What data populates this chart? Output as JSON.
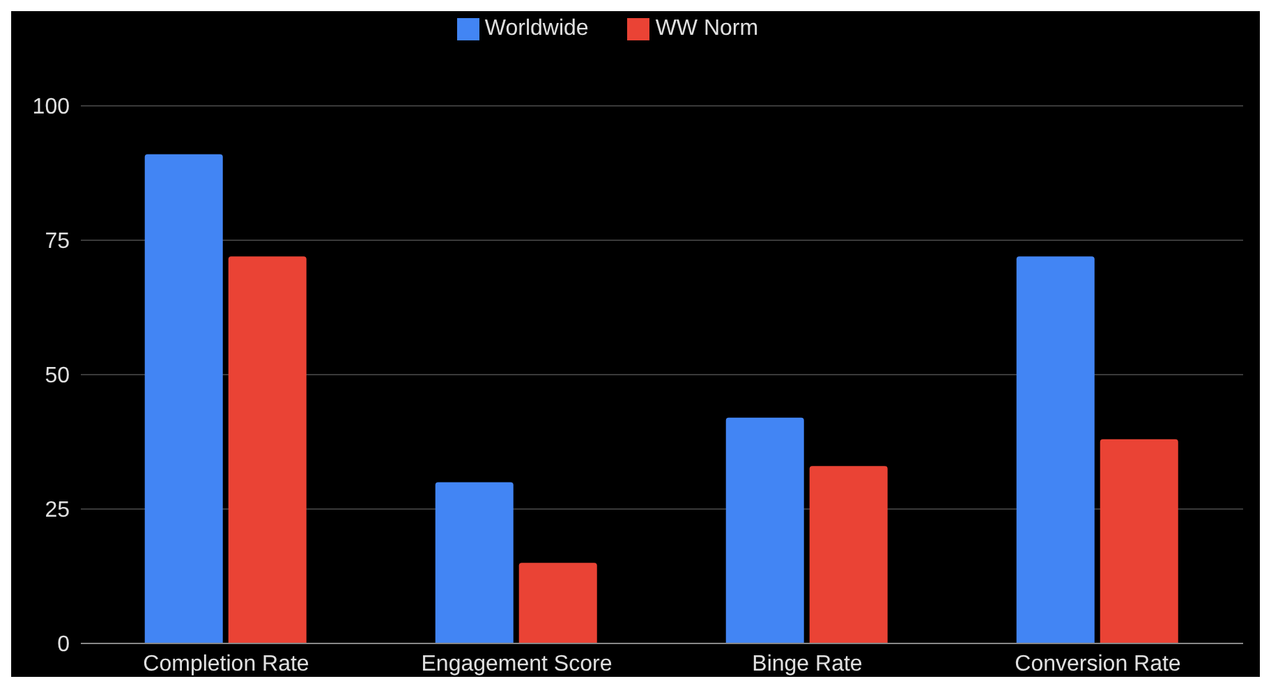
{
  "chart_data": {
    "type": "bar",
    "categories": [
      "Completion Rate",
      "Engagement Score",
      "Binge Rate",
      "Conversion Rate"
    ],
    "series": [
      {
        "name": "Worldwide",
        "color": "#4285f4",
        "values": [
          91,
          30,
          42,
          72
        ]
      },
      {
        "name": "WW Norm",
        "color": "#ea4335",
        "values": [
          72,
          15,
          33,
          38
        ]
      }
    ],
    "ylim": [
      0,
      100
    ],
    "yticks": [
      0,
      25,
      50,
      75,
      100
    ],
    "grid": "y",
    "legend": "top"
  }
}
